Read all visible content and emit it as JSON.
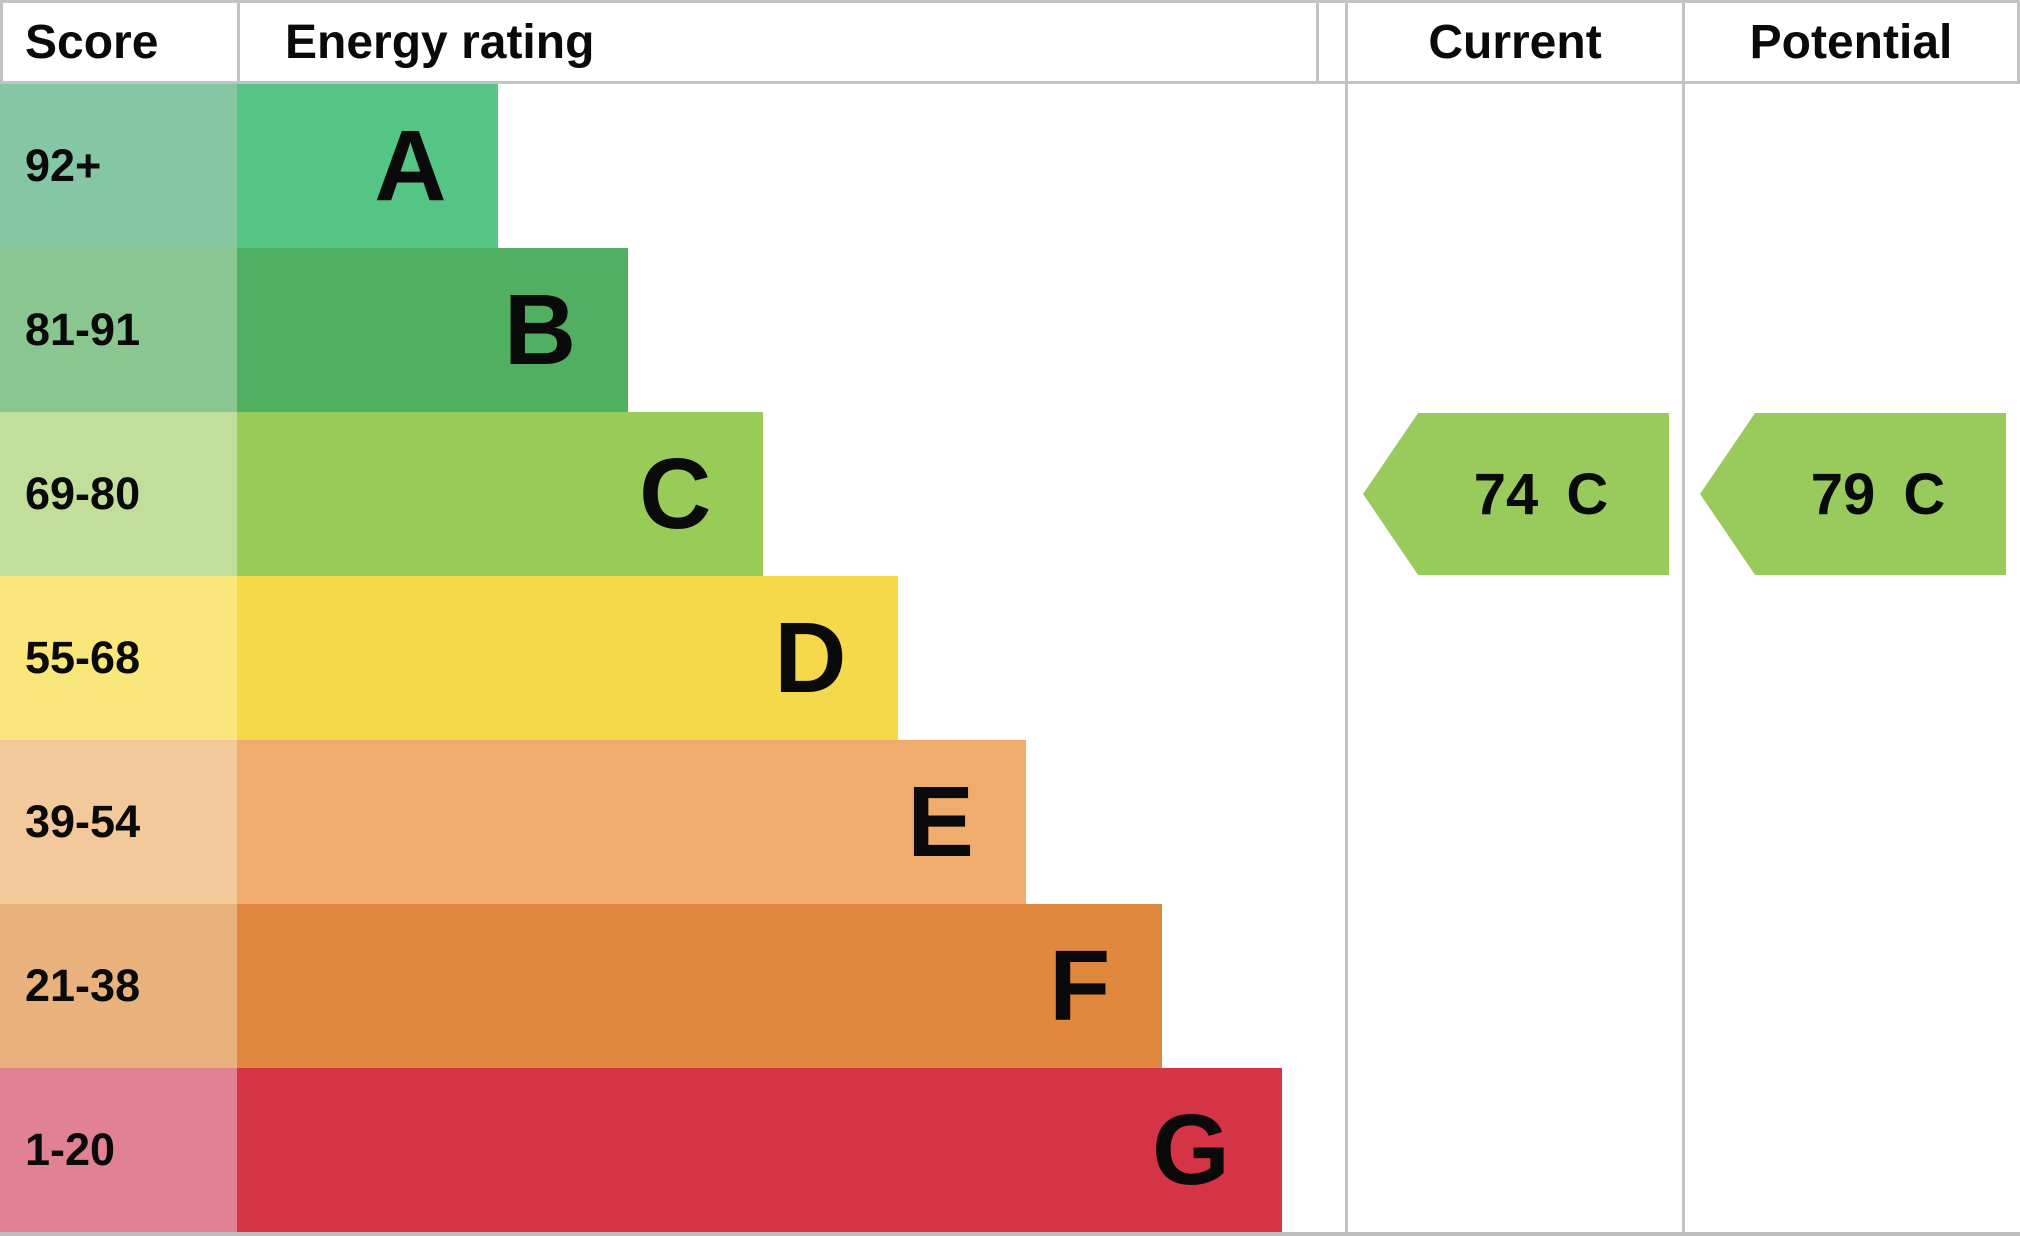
{
  "headers": {
    "score": "Score",
    "energy_rating": "Energy rating",
    "current": "Current",
    "potential": "Potential"
  },
  "chart_data": {
    "type": "bar",
    "orientation": "horizontal",
    "title": "Energy rating",
    "categories": [
      "A",
      "B",
      "C",
      "D",
      "E",
      "F",
      "G"
    ],
    "bands": [
      {
        "letter": "A",
        "score_range": "92+",
        "bar_width_pct": 23.6,
        "bar_color": "#55c585",
        "score_cell_color": "#85c7a5"
      },
      {
        "letter": "B",
        "score_range": "81-91",
        "bar_width_pct": 35.3,
        "bar_color": "#50af61",
        "score_cell_color": "#8ac790"
      },
      {
        "letter": "C",
        "score_range": "69-80",
        "bar_width_pct": 47.5,
        "bar_color": "#98cb58",
        "score_cell_color": "#c1df9b"
      },
      {
        "letter": "D",
        "score_range": "55-68",
        "bar_width_pct": 59.7,
        "bar_color": "#f6d84b",
        "score_cell_color": "#f9e77b"
      },
      {
        "letter": "E",
        "score_range": "39-54",
        "bar_width_pct": 71.2,
        "bar_color": "#efac6c",
        "score_cell_color": "#f3c89a"
      },
      {
        "letter": "F",
        "score_range": "21-38",
        "bar_width_pct": 83.5,
        "bar_color": "#e0883d",
        "score_cell_color": "#e9b27d"
      },
      {
        "letter": "G",
        "score_range": "1-20",
        "bar_width_pct": 94.3,
        "bar_color": "#d53447",
        "score_cell_color": "#e08291"
      }
    ],
    "current": {
      "value": "74",
      "band": "C",
      "arrow_color": "#99ca5c"
    },
    "potential": {
      "value": "79",
      "band": "C",
      "arrow_color": "#99ca5c"
    },
    "layout": {
      "border_color": "#c3c3c3",
      "text_color": "#0a0a0a",
      "background": "#ffffff",
      "legend": "none",
      "grid": "off"
    }
  }
}
